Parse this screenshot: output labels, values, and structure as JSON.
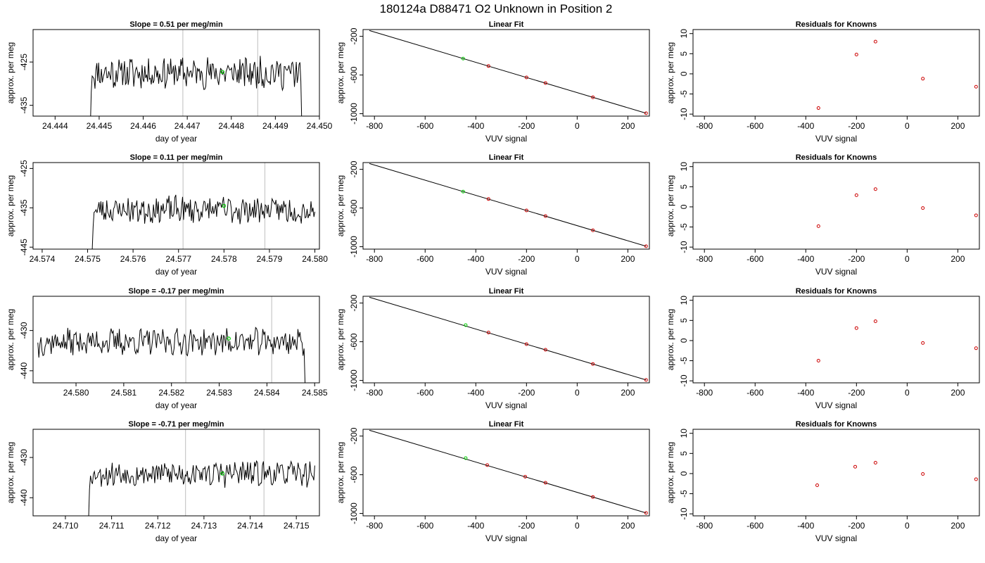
{
  "suptitle": "180124a      D88471    O2 Unknown in Position  2",
  "chart_data": [
    {
      "row": 0,
      "type": "line",
      "title": "Slope =  0.51  per meg/min",
      "xlabel": "day of year",
      "ylabel": "approx. per meg",
      "xlim": [
        24.4435,
        24.45
      ],
      "ylim": [
        -437.5,
        -417.5
      ],
      "xticks": [
        "24.444",
        "24.445",
        "24.446",
        "24.447",
        "24.448",
        "24.449",
        "24.450"
      ],
      "yticks": [
        "-425",
        "-435"
      ],
      "vlines": [
        24.4469,
        24.4486
      ],
      "marker": {
        "x": 24.4478,
        "y": -427.3
      },
      "series": [
        {
          "x_start": 24.4448,
          "x_end": 24.4496,
          "seed": 11,
          "level": -427.5,
          "amp": 3.2,
          "start_y": -440,
          "end_y": -440,
          "points": 230
        }
      ]
    },
    {
      "row": 0,
      "type": "scatter",
      "title": "Linear Fit",
      "xlabel": "VUV signal",
      "ylabel": "approx. per meg",
      "xlim": [
        -845,
        285
      ],
      "ylim": [
        -1025,
        -130
      ],
      "xticks": [
        "-800",
        "-600",
        "-400",
        "-200",
        "0",
        "200"
      ],
      "yticks": [
        "-200",
        "-600",
        "-1000"
      ],
      "fit": {
        "x": [
          -820,
          272
        ],
        "y": [
          -140,
          -995
        ]
      },
      "points": [
        {
          "x": -450,
          "y": -430
        },
        {
          "x": -350,
          "y": -507
        },
        {
          "x": -200,
          "y": -625
        },
        {
          "x": -125,
          "y": -683
        },
        {
          "x": 62,
          "y": -830
        },
        {
          "x": 272,
          "y": -995
        }
      ],
      "point_colors": [
        "#00cc00",
        "#cc0000",
        "#cc0000",
        "#cc0000",
        "#cc0000",
        "#cc0000"
      ]
    },
    {
      "row": 0,
      "type": "scatter",
      "title": "Residuals for Knowns",
      "xlabel": "VUV signal",
      "ylabel": "approx. per meg",
      "xlim": [
        -845,
        285
      ],
      "ylim": [
        -10.5,
        11
      ],
      "xticks": [
        "-800",
        "-600",
        "-400",
        "-200",
        "0",
        "200"
      ],
      "yticks": [
        "10",
        "5",
        "0",
        "-5",
        "-10"
      ],
      "points": [
        {
          "x": -350,
          "y": -8.5
        },
        {
          "x": -200,
          "y": 4.8
        },
        {
          "x": -125,
          "y": 8.0
        },
        {
          "x": 62,
          "y": -1.2
        },
        {
          "x": 272,
          "y": -3.2
        }
      ],
      "point_colors": [
        "#cc0000",
        "#cc0000",
        "#cc0000",
        "#cc0000",
        "#cc0000"
      ]
    },
    {
      "row": 1,
      "type": "line",
      "title": "Slope =  0.11  per meg/min",
      "xlabel": "day of year",
      "ylabel": "approx. per meg",
      "xlim": [
        24.5738,
        24.5801
      ],
      "ylim": [
        -445.5,
        -423.5
      ],
      "xticks": [
        "24.574",
        "24.575",
        "24.576",
        "24.577",
        "24.578",
        "24.579",
        "24.580"
      ],
      "yticks": [
        "-425",
        "-435",
        "-445"
      ],
      "vlines": [
        24.5771,
        24.5789
      ],
      "marker": {
        "x": 24.578,
        "y": -434.5
      },
      "series": [
        {
          "x_start": 24.5751,
          "x_end": 24.58,
          "seed": 23,
          "level": -435.5,
          "amp": 3.0,
          "start_y": -446,
          "end_y": -436,
          "points": 230
        }
      ]
    },
    {
      "row": 1,
      "type": "scatter",
      "title": "Linear Fit",
      "xlabel": "VUV signal",
      "ylabel": "approx. per meg",
      "xlim": [
        -845,
        285
      ],
      "ylim": [
        -1025,
        -130
      ],
      "xticks": [
        "-800",
        "-600",
        "-400",
        "-200",
        "0",
        "200"
      ],
      "yticks": [
        "-200",
        "-600",
        "-1000"
      ],
      "fit": {
        "x": [
          -820,
          272
        ],
        "y": [
          -140,
          -995
        ]
      },
      "points": [
        {
          "x": -450,
          "y": -430
        },
        {
          "x": -350,
          "y": -507
        },
        {
          "x": -200,
          "y": -625
        },
        {
          "x": -125,
          "y": -683
        },
        {
          "x": 62,
          "y": -830
        },
        {
          "x": 272,
          "y": -995
        }
      ],
      "point_colors": [
        "#00cc00",
        "#cc0000",
        "#cc0000",
        "#cc0000",
        "#cc0000",
        "#cc0000"
      ]
    },
    {
      "row": 1,
      "type": "scatter",
      "title": "Residuals for Knowns",
      "xlabel": "VUV signal",
      "ylabel": "approx. per meg",
      "xlim": [
        -845,
        285
      ],
      "ylim": [
        -10.5,
        11
      ],
      "xticks": [
        "-800",
        "-600",
        "-400",
        "-200",
        "0",
        "200"
      ],
      "yticks": [
        "10",
        "5",
        "0",
        "-5",
        "-10"
      ],
      "points": [
        {
          "x": -350,
          "y": -4.8
        },
        {
          "x": -200,
          "y": 2.9
        },
        {
          "x": -125,
          "y": 4.4
        },
        {
          "x": 62,
          "y": -0.3
        },
        {
          "x": 272,
          "y": -2.1
        }
      ],
      "point_colors": [
        "#cc0000",
        "#cc0000",
        "#cc0000",
        "#cc0000",
        "#cc0000"
      ]
    },
    {
      "row": 2,
      "type": "line",
      "title": "Slope =  -0.17  per meg/min",
      "xlabel": "day of year",
      "ylabel": "approx. per meg",
      "xlim": [
        24.5791,
        24.5851
      ],
      "ylim": [
        -443,
        -421.5
      ],
      "xticks": [
        "24.580",
        "24.581",
        "24.582",
        "24.583",
        "24.584",
        "24.585"
      ],
      "yticks": [
        "-430",
        "-440"
      ],
      "vlines": [
        24.5823,
        24.5841
      ],
      "marker": {
        "x": 24.5832,
        "y": -432.0
      },
      "series": [
        {
          "x_start": 24.5792,
          "x_end": 24.5848,
          "seed": 37,
          "level": -432.8,
          "amp": 2.8,
          "start_y": -433,
          "end_y": -444,
          "points": 260
        }
      ]
    },
    {
      "row": 2,
      "type": "scatter",
      "title": "Linear Fit",
      "xlabel": "VUV signal",
      "ylabel": "approx. per meg",
      "xlim": [
        -845,
        285
      ],
      "ylim": [
        -1025,
        -130
      ],
      "xticks": [
        "-800",
        "-600",
        "-400",
        "-200",
        "0",
        "200"
      ],
      "yticks": [
        "-200",
        "-600",
        "-1000"
      ],
      "fit": {
        "x": [
          -820,
          272
        ],
        "y": [
          -140,
          -995
        ]
      },
      "points": [
        {
          "x": -440,
          "y": -428
        },
        {
          "x": -350,
          "y": -505
        },
        {
          "x": -200,
          "y": -625
        },
        {
          "x": -125,
          "y": -683
        },
        {
          "x": 62,
          "y": -830
        },
        {
          "x": 272,
          "y": -995
        }
      ],
      "point_colors": [
        "#00cc00",
        "#cc0000",
        "#cc0000",
        "#cc0000",
        "#cc0000",
        "#cc0000"
      ]
    },
    {
      "row": 2,
      "type": "scatter",
      "title": "Residuals for Knowns",
      "xlabel": "VUV signal",
      "ylabel": "approx. per meg",
      "xlim": [
        -845,
        285
      ],
      "ylim": [
        -10.5,
        11
      ],
      "xticks": [
        "-800",
        "-600",
        "-400",
        "-200",
        "0",
        "200"
      ],
      "yticks": [
        "10",
        "5",
        "0",
        "-5",
        "-10"
      ],
      "points": [
        {
          "x": -350,
          "y": -5.0
        },
        {
          "x": -200,
          "y": 3.1
        },
        {
          "x": -125,
          "y": 4.8
        },
        {
          "x": 62,
          "y": -0.6
        },
        {
          "x": 272,
          "y": -1.9
        }
      ],
      "point_colors": [
        "#cc0000",
        "#cc0000",
        "#cc0000",
        "#cc0000",
        "#cc0000"
      ]
    },
    {
      "row": 3,
      "type": "line",
      "title": "Slope =  -0.71  per meg/min",
      "xlabel": "day of year",
      "ylabel": "approx. per meg",
      "xlim": [
        24.7093,
        24.7155
      ],
      "ylim": [
        -444.5,
        -423
      ],
      "xticks": [
        "24.710",
        "24.711",
        "24.712",
        "24.713",
        "24.714",
        "24.715"
      ],
      "yticks": [
        "-430",
        "-440"
      ],
      "vlines": [
        24.7126,
        24.7143
      ],
      "marker": {
        "x": 24.7134,
        "y": -434.0
      },
      "series": [
        {
          "x_start": 24.7105,
          "x_end": 24.7154,
          "seed": 53,
          "level": -434.0,
          "amp": 2.8,
          "start_y": -446,
          "end_y": -432,
          "points": 230
        }
      ]
    },
    {
      "row": 3,
      "type": "scatter",
      "title": "Linear Fit",
      "xlabel": "VUV signal",
      "ylabel": "approx. per meg",
      "xlim": [
        -845,
        285
      ],
      "ylim": [
        -1025,
        -130
      ],
      "xticks": [
        "-800",
        "-600",
        "-400",
        "-200",
        "0",
        "200"
      ],
      "yticks": [
        "-200",
        "-600",
        "-1000"
      ],
      "fit": {
        "x": [
          -820,
          272
        ],
        "y": [
          -140,
          -995
        ]
      },
      "points": [
        {
          "x": -440,
          "y": -428
        },
        {
          "x": -355,
          "y": -500
        },
        {
          "x": -205,
          "y": -620
        },
        {
          "x": -125,
          "y": -683
        },
        {
          "x": 62,
          "y": -830
        },
        {
          "x": 272,
          "y": -995
        }
      ],
      "point_colors": [
        "#00cc00",
        "#cc0000",
        "#cc0000",
        "#cc0000",
        "#cc0000",
        "#cc0000"
      ]
    },
    {
      "row": 3,
      "type": "scatter",
      "title": "Residuals for Knowns",
      "xlabel": "VUV signal",
      "ylabel": "approx. per meg",
      "xlim": [
        -845,
        285
      ],
      "ylim": [
        -10.5,
        11
      ],
      "xticks": [
        "-800",
        "-600",
        "-400",
        "-200",
        "0",
        "200"
      ],
      "yticks": [
        "10",
        "5",
        "0",
        "-5",
        "-10"
      ],
      "points": [
        {
          "x": -355,
          "y": -2.9
        },
        {
          "x": -205,
          "y": 1.7
        },
        {
          "x": -125,
          "y": 2.7
        },
        {
          "x": 62,
          "y": -0.1
        },
        {
          "x": 272,
          "y": -1.4
        }
      ],
      "point_colors": [
        "#cc0000",
        "#cc0000",
        "#cc0000",
        "#cc0000",
        "#cc0000"
      ]
    }
  ]
}
